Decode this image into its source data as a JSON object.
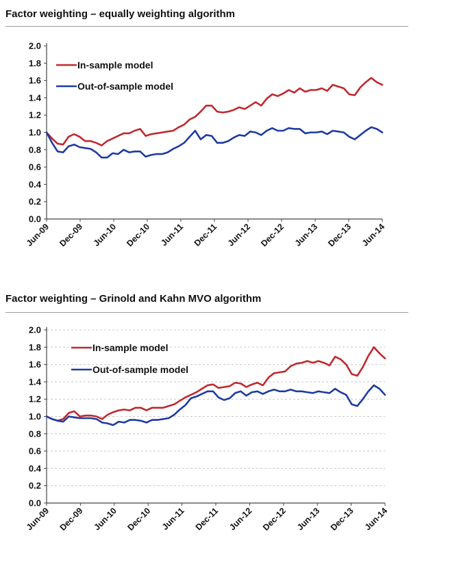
{
  "chart_data": [
    {
      "type": "line",
      "title": "Factor weighting – equally weighting algorithm",
      "x_tick_labels": [
        "Jun-09",
        "Dec-09",
        "Jun-10",
        "Dec-10",
        "Jun-11",
        "Dec-11",
        "Jun-12",
        "Dec-12",
        "Jun-13",
        "Dec-13",
        "Jun-14"
      ],
      "y_tick_labels": [
        "0.0",
        "0.2",
        "0.4",
        "0.6",
        "0.8",
        "1.0",
        "1.2",
        "1.4",
        "1.6",
        "1.8",
        "2.0"
      ],
      "ylim": [
        0,
        2.0
      ],
      "grid": false,
      "legend_placement": "top-left",
      "x_months_from_jun09": [
        0,
        1,
        2,
        3,
        4,
        5,
        6,
        7,
        8,
        9,
        10,
        11,
        12,
        13,
        14,
        15,
        16,
        17,
        18,
        19,
        20,
        21,
        22,
        23,
        24,
        25,
        26,
        27,
        28,
        29,
        30,
        31,
        32,
        33,
        34,
        35,
        36,
        37,
        38,
        39,
        40,
        41,
        42,
        43,
        44,
        45,
        46,
        47,
        48,
        49,
        50,
        51,
        52,
        53,
        54,
        55,
        56,
        57,
        58,
        59,
        60,
        61
      ],
      "series": [
        {
          "name": "In-sample model",
          "color": "#c0282d",
          "values": [
            1.0,
            0.93,
            0.87,
            0.86,
            0.95,
            0.98,
            0.95,
            0.9,
            0.9,
            0.88,
            0.85,
            0.9,
            0.93,
            0.96,
            0.99,
            0.99,
            1.02,
            1.04,
            0.96,
            0.98,
            0.99,
            1.0,
            1.01,
            1.02,
            1.06,
            1.09,
            1.15,
            1.18,
            1.24,
            1.31,
            1.31,
            1.24,
            1.23,
            1.24,
            1.26,
            1.29,
            1.27,
            1.31,
            1.35,
            1.31,
            1.39,
            1.44,
            1.42,
            1.45,
            1.49,
            1.46,
            1.51,
            1.47,
            1.49,
            1.49,
            1.51,
            1.48,
            1.55,
            1.53,
            1.51,
            1.44,
            1.43,
            1.52,
            1.58,
            1.63,
            1.58,
            1.55
          ]
        },
        {
          "name": "Out-of-sample model",
          "color": "#1f3aa0",
          "values": [
            1.0,
            0.88,
            0.78,
            0.77,
            0.84,
            0.86,
            0.83,
            0.82,
            0.81,
            0.77,
            0.71,
            0.71,
            0.76,
            0.75,
            0.8,
            0.77,
            0.78,
            0.78,
            0.72,
            0.74,
            0.75,
            0.75,
            0.77,
            0.81,
            0.84,
            0.88,
            0.95,
            1.02,
            0.92,
            0.97,
            0.96,
            0.88,
            0.88,
            0.9,
            0.94,
            0.97,
            0.96,
            1.01,
            1.0,
            0.97,
            1.02,
            1.05,
            1.02,
            1.02,
            1.05,
            1.04,
            1.04,
            0.99,
            1.0,
            1.0,
            1.01,
            0.98,
            1.02,
            1.01,
            1.0,
            0.95,
            0.92,
            0.97,
            1.02,
            1.06,
            1.04,
            1.0
          ]
        }
      ]
    },
    {
      "type": "line",
      "title": "Factor weighting – Grinold and Kahn MVO algorithm",
      "x_tick_labels": [
        "Jun-09",
        "Dec-09",
        "Jun-10",
        "Dec-10",
        "Jun-11",
        "Dec-11",
        "Jun-12",
        "Dec-12",
        "Jun-13",
        "Dec-13",
        "Jun-14"
      ],
      "y_tick_labels": [
        "0.0",
        "0.2",
        "0.4",
        "0.6",
        "0.8",
        "1.0",
        "1.2",
        "1.4",
        "1.6",
        "1.8",
        "2.0"
      ],
      "ylim": [
        0,
        2.0
      ],
      "grid": true,
      "legend_placement": "top-left",
      "x_months_from_jun09": [
        0,
        1,
        2,
        3,
        4,
        5,
        6,
        7,
        8,
        9,
        10,
        11,
        12,
        13,
        14,
        15,
        16,
        17,
        18,
        19,
        20,
        21,
        22,
        23,
        24,
        25,
        26,
        27,
        28,
        29,
        30,
        31,
        32,
        33,
        34,
        35,
        36,
        37,
        38,
        39,
        40,
        41,
        42,
        43,
        44,
        45,
        46,
        47,
        48,
        49,
        50,
        51,
        52,
        53,
        54,
        55,
        56,
        57,
        58,
        59,
        60,
        61
      ],
      "series": [
        {
          "name": "In-sample model",
          "color": "#c0282d",
          "values": [
            1.0,
            0.97,
            0.95,
            0.97,
            1.04,
            1.06,
            1.0,
            1.01,
            1.01,
            1.0,
            0.97,
            1.02,
            1.05,
            1.07,
            1.08,
            1.07,
            1.1,
            1.1,
            1.07,
            1.1,
            1.1,
            1.1,
            1.12,
            1.14,
            1.18,
            1.22,
            1.25,
            1.28,
            1.32,
            1.36,
            1.37,
            1.33,
            1.34,
            1.35,
            1.39,
            1.38,
            1.34,
            1.37,
            1.39,
            1.36,
            1.45,
            1.5,
            1.51,
            1.52,
            1.58,
            1.61,
            1.62,
            1.64,
            1.62,
            1.64,
            1.62,
            1.59,
            1.69,
            1.66,
            1.6,
            1.49,
            1.47,
            1.57,
            1.7,
            1.8,
            1.73,
            1.67
          ]
        },
        {
          "name": "Out-of-sample model",
          "color": "#1f3aa0",
          "values": [
            1.0,
            0.97,
            0.95,
            0.94,
            1.0,
            0.99,
            0.98,
            0.98,
            0.98,
            0.97,
            0.93,
            0.92,
            0.9,
            0.94,
            0.93,
            0.96,
            0.96,
            0.95,
            0.93,
            0.96,
            0.96,
            0.97,
            0.98,
            1.02,
            1.08,
            1.13,
            1.21,
            1.23,
            1.26,
            1.29,
            1.29,
            1.22,
            1.19,
            1.21,
            1.27,
            1.29,
            1.24,
            1.28,
            1.29,
            1.26,
            1.29,
            1.31,
            1.29,
            1.29,
            1.31,
            1.29,
            1.29,
            1.28,
            1.27,
            1.29,
            1.28,
            1.27,
            1.32,
            1.28,
            1.25,
            1.14,
            1.12,
            1.2,
            1.29,
            1.36,
            1.32,
            1.25
          ]
        }
      ]
    }
  ]
}
